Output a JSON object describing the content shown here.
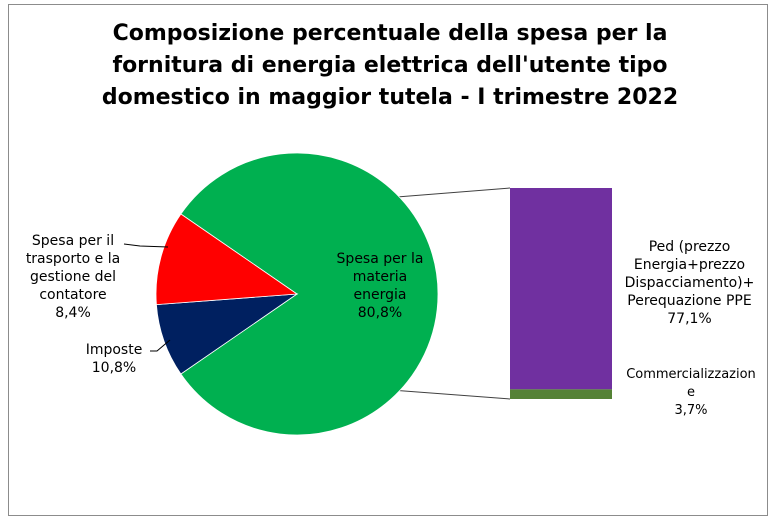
{
  "title_lines": [
    "Composizione percentuale della spesa per la",
    "fornitura di energia elettrica dell'utente tipo",
    "domestico in maggior tutela - I trimestre 2022"
  ],
  "colors": {
    "materia_energia": "#00b050",
    "trasporto": "#002060",
    "imposte": "#ff0000",
    "ped": "#7030a0",
    "commercializzazione": "#548235"
  },
  "chart_data": {
    "type": "bar-of-pie",
    "title": "Composizione percentuale della spesa per la fornitura di energia elettrica dell'utente tipo domestico in maggior tutela - I trimestre 2022",
    "pie": [
      {
        "label_lines": [
          "Spesa per la",
          "materia",
          "energia"
        ],
        "value": 80.8,
        "value_label": "80,8%"
      },
      {
        "label_lines": [
          "Spesa per il",
          "trasporto e la",
          "gestione del",
          "contatore"
        ],
        "value": 8.4,
        "value_label": "8,4%"
      },
      {
        "label_lines": [
          "Imposte"
        ],
        "value": 10.8,
        "value_label": "10,8%"
      }
    ],
    "bar": [
      {
        "label_lines": [
          "Ped (prezzo",
          "Energia+prezzo",
          "Dispacciamento)+",
          "Perequazione PPE"
        ],
        "value": 77.1,
        "value_label": "77,1%"
      },
      {
        "label_lines": [
          "Commercializzazion",
          "e"
        ],
        "value": 3.7,
        "value_label": "3,7%"
      }
    ]
  }
}
